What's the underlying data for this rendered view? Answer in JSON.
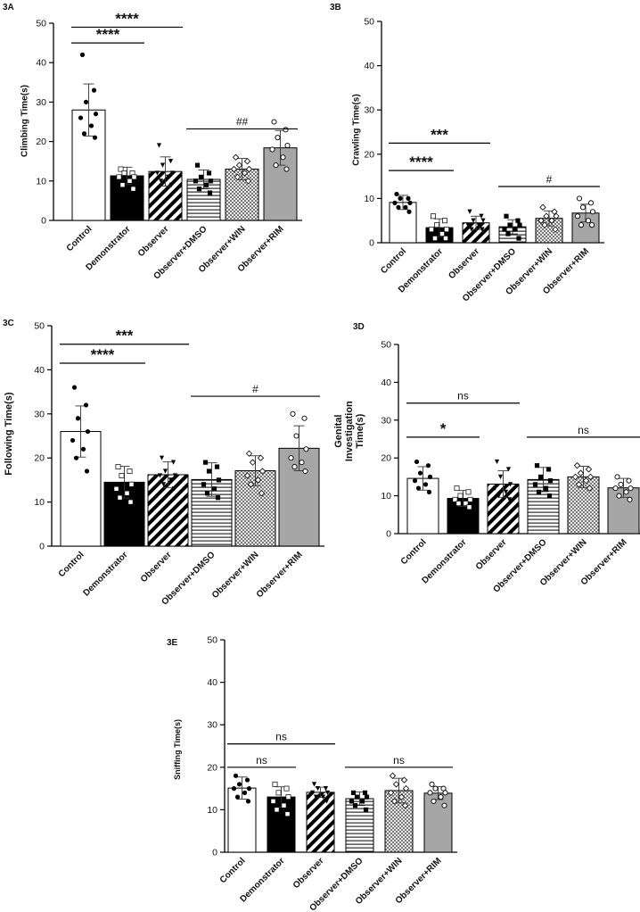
{
  "categories": [
    "Control",
    "Demonstrator",
    "Observer",
    "Observer+DMSO",
    "Observer+WIN",
    "Observer+RIM"
  ],
  "colors": {
    "black": "#000000",
    "gray": "#a6a6a6",
    "white": "#ffffff"
  },
  "chart_data": [
    {
      "id": "3A",
      "type": "bar",
      "panel_label": "3A",
      "ylabel": "Climbing Time(s)",
      "ylim": [
        0,
        50
      ],
      "yticks": [
        0,
        10,
        20,
        30,
        40,
        50
      ],
      "categories": [
        "Control",
        "Demonstrator",
        "Observer",
        "Observer+DMSO",
        "Observer+WIN",
        "Observer+RIM"
      ],
      "values": [
        28,
        11.3,
        12.4,
        10.4,
        13,
        18.4
      ],
      "sd": [
        6.6,
        2.2,
        3.7,
        2.4,
        2.7,
        4.4
      ],
      "points": [
        [
          42,
          33,
          30,
          27,
          26,
          24,
          22,
          21
        ],
        [
          13,
          12,
          12,
          11,
          11,
          10,
          9,
          8
        ],
        [
          19,
          15,
          14,
          12,
          12,
          11,
          10,
          9
        ],
        [
          14,
          12,
          11,
          10,
          10,
          9,
          8,
          7
        ],
        [
          16,
          15,
          14,
          13,
          13,
          12,
          11,
          10
        ],
        [
          25,
          23,
          21,
          19,
          18,
          16,
          14,
          13
        ]
      ],
      "markers": [
        "circle-filled",
        "square-open",
        "triangle-down",
        "square-filled",
        "diamond-open",
        "circle-open"
      ],
      "annotations": [
        {
          "text": "****",
          "from": 0,
          "to": 1,
          "y": 45
        },
        {
          "text": "****",
          "from": 0,
          "to": 2,
          "y": 49
        },
        {
          "text": "##",
          "from": 3,
          "to": 5,
          "y": 23.2
        }
      ]
    },
    {
      "id": "3B",
      "type": "bar",
      "panel_label": "3B",
      "ylabel": "Crawling Time(s)",
      "ylim": [
        0,
        50
      ],
      "yticks": [
        0,
        10,
        20,
        30,
        40,
        50
      ],
      "categories": [
        "Control",
        "Demonstrator",
        "Observer",
        "Observer+DMSO",
        "Observer+WIN",
        "Observer+RIM"
      ],
      "values": [
        9.1,
        3.4,
        4.5,
        3.6,
        5.5,
        6.7
      ],
      "sd": [
        1.6,
        2,
        1.5,
        1.6,
        1.7,
        2
      ],
      "points": [
        [
          11,
          10,
          10,
          9,
          9,
          8,
          8,
          7
        ],
        [
          6,
          5,
          4,
          3,
          3,
          2,
          1,
          1
        ],
        [
          7,
          6,
          5,
          5,
          4,
          4,
          3,
          3
        ],
        [
          6,
          5,
          4,
          4,
          3,
          3,
          2,
          1
        ],
        [
          8,
          7,
          6,
          6,
          5,
          5,
          4,
          3
        ],
        [
          10,
          9,
          8,
          7,
          6,
          5,
          4,
          4
        ]
      ],
      "markers": [
        "circle-filled",
        "square-open",
        "triangle-down",
        "square-filled",
        "diamond-open",
        "circle-open"
      ],
      "annotations": [
        {
          "text": "****",
          "from": 0,
          "to": 1,
          "y": 16.3
        },
        {
          "text": "***",
          "from": 0,
          "to": 2,
          "y": 22.5
        },
        {
          "text": "#",
          "from": 3,
          "to": 5,
          "y": 12.7
        }
      ]
    },
    {
      "id": "3C",
      "type": "bar",
      "panel_label": "3C",
      "ylabel": "Following Time(s)",
      "ylim": [
        0,
        50
      ],
      "yticks": [
        0,
        10,
        20,
        30,
        40,
        50
      ],
      "categories": [
        "Control",
        "Demonstrator",
        "Observer",
        "Observer+DMSO",
        "Observer+WIN",
        "Observer+RIM"
      ],
      "values": [
        26,
        14.5,
        16.2,
        15.1,
        17.1,
        22.2
      ],
      "sd": [
        5.8,
        3.6,
        2.9,
        3.8,
        3.4,
        5.1
      ],
      "points": [
        [
          36,
          32,
          29,
          26,
          24,
          22,
          20,
          17
        ],
        [
          18,
          17,
          16,
          14,
          13,
          12,
          11,
          10
        ],
        [
          20,
          19,
          17,
          16,
          16,
          15,
          14,
          13
        ],
        [
          19,
          18,
          17,
          15,
          14,
          13,
          12,
          11
        ],
        [
          21,
          20,
          19,
          17,
          16,
          15,
          14,
          12
        ],
        [
          30,
          29,
          25,
          22,
          20,
          19,
          18,
          17
        ]
      ],
      "markers": [
        "circle-filled",
        "square-open",
        "triangle-down",
        "square-filled",
        "diamond-open",
        "circle-open"
      ],
      "annotations": [
        {
          "text": "****",
          "from": 0,
          "to": 1,
          "y": 41.5
        },
        {
          "text": "***",
          "from": 0,
          "to": 2,
          "y": 45.8
        },
        {
          "text": "#",
          "from": 3,
          "to": 5,
          "y": 34
        }
      ]
    },
    {
      "id": "3D",
      "type": "bar",
      "panel_label": "3D",
      "ylabel": "Genital Investigation Time(s)",
      "ylim": [
        0,
        50
      ],
      "yticks": [
        0,
        10,
        20,
        30,
        40,
        50
      ],
      "categories": [
        "Control",
        "Demonstrator",
        "Observer",
        "Observer+DMSO",
        "Observer+WIN",
        "Observer+RIM"
      ],
      "values": [
        14.6,
        9.3,
        13.1,
        14.3,
        15,
        12.1
      ],
      "sd": [
        3.1,
        2.1,
        3.5,
        3.2,
        2.8,
        2.5
      ],
      "points": [
        [
          19,
          18,
          16,
          15,
          14,
          13,
          12,
          11
        ],
        [
          12,
          11,
          10,
          9,
          9,
          8,
          8,
          7
        ],
        [
          19,
          17,
          15,
          13,
          12,
          11,
          10,
          9
        ],
        [
          18,
          17,
          15,
          14,
          13,
          12,
          11,
          10
        ],
        [
          18,
          17,
          16,
          15,
          15,
          14,
          13,
          12
        ],
        [
          15,
          14,
          13,
          12,
          12,
          11,
          10,
          9
        ]
      ],
      "markers": [
        "circle-filled",
        "square-open",
        "triangle-down",
        "square-filled",
        "diamond-open",
        "circle-open"
      ],
      "annotations": [
        {
          "text": "*",
          "from": 0,
          "to": 1,
          "y": 25.5
        },
        {
          "text": "ns",
          "from": 0,
          "to": 2,
          "y": 34.5
        },
        {
          "text": "ns",
          "from": 3,
          "to": 5,
          "y": 25.5
        }
      ]
    },
    {
      "id": "3E",
      "type": "bar",
      "panel_label": "3E",
      "ylabel": "Sniffing Time(s)",
      "ylim": [
        0,
        50
      ],
      "yticks": [
        0,
        10,
        20,
        30,
        40,
        50
      ],
      "categories": [
        "Control",
        "Demonstrator",
        "Observer",
        "Observer+DMSO",
        "Observer+WIN",
        "Observer+RIM"
      ],
      "values": [
        15.1,
        13,
        14.1,
        12.6,
        14.5,
        13.9
      ],
      "sd": [
        2.6,
        2.4,
        1.2,
        1.6,
        2.9,
        1.5
      ],
      "points": [
        [
          18,
          17,
          16,
          15,
          15,
          14,
          13,
          12
        ],
        [
          16,
          15,
          14,
          13,
          12,
          11,
          10,
          9
        ],
        [
          16,
          15,
          15,
          14,
          14,
          13,
          13,
          12
        ],
        [
          14,
          14,
          13,
          13,
          12,
          12,
          11,
          10
        ],
        [
          18,
          17,
          16,
          15,
          14,
          13,
          12,
          11
        ],
        [
          16,
          15,
          15,
          14,
          14,
          13,
          12,
          11
        ]
      ],
      "markers": [
        "circle-filled",
        "square-open",
        "triangle-down",
        "square-filled",
        "diamond-open",
        "circle-open"
      ],
      "annotations": [
        {
          "text": "ns",
          "from": 0,
          "to": 1,
          "y": 20
        },
        {
          "text": "ns",
          "from": 0,
          "to": 2,
          "y": 25.5
        },
        {
          "text": "ns",
          "from": 3,
          "to": 5,
          "y": 20
        }
      ]
    }
  ]
}
